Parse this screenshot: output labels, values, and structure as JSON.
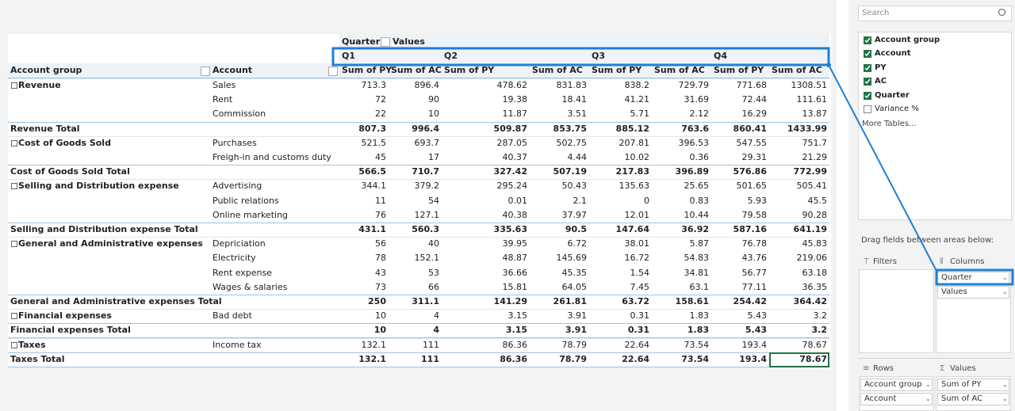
{
  "table": {
    "header": {
      "quarter_label": "Quarter",
      "values_label": "Values",
      "account_group": "Account group",
      "account": "Account",
      "quarters": [
        "Q1",
        "Q2",
        "Q3",
        "Q4"
      ],
      "measures": [
        "Sum of PY",
        "Sum of AC",
        "Sum of PY",
        "Sum of AC",
        "Sum of PY",
        "Sum of AC",
        "Sum of PY",
        "Sum of AC"
      ]
    },
    "rows": [
      {
        "group": "Revenue",
        "account": "Sales",
        "values": [
          713.3,
          896.4,
          478.62,
          831.83,
          838.2,
          729.79,
          771.68,
          1308.51
        ]
      },
      {
        "account": "Rent",
        "values": [
          72,
          90,
          19.38,
          18.41,
          41.21,
          31.69,
          72.44,
          111.61
        ]
      },
      {
        "account": "Commission",
        "values": [
          22,
          10,
          11.87,
          3.51,
          5.71,
          2.12,
          16.29,
          13.87
        ]
      },
      {
        "group": "Revenue Total",
        "values": [
          807.3,
          996.4,
          509.87,
          853.75,
          885.12,
          763.6,
          860.41,
          1433.99
        ]
      },
      {
        "group": "Cost of Goods Sold",
        "account": "Purchases",
        "values": [
          521.5,
          693.7,
          287.05,
          502.75,
          207.81,
          396.53,
          547.55,
          751.7
        ]
      },
      {
        "account": "Freigh-in and customs duty",
        "values": [
          45,
          17,
          40.37,
          4.44,
          10.02,
          0.36,
          29.31,
          21.29
        ]
      },
      {
        "group": "Cost of Goods Sold Total",
        "values": [
          566.5,
          710.7,
          327.42,
          507.19,
          217.83,
          396.89,
          576.86,
          772.99
        ]
      },
      {
        "group": "Selling and Distribution expense",
        "account": "Advertising",
        "values": [
          344.1,
          379.2,
          295.24,
          50.43,
          135.63,
          25.65,
          501.65,
          505.41
        ]
      },
      {
        "account": "Public relations",
        "values": [
          11,
          54,
          0.01,
          2.1,
          0,
          0.83,
          5.93,
          45.5
        ]
      },
      {
        "account": "Online marketing",
        "values": [
          76,
          127.1,
          40.38,
          37.97,
          12.01,
          10.44,
          79.58,
          90.28
        ]
      },
      {
        "group": "Selling and Distribution expense Total",
        "values": [
          431.1,
          560.3,
          335.63,
          90.5,
          147.64,
          36.92,
          587.16,
          641.19
        ]
      },
      {
        "group": "General and Administrative expenses",
        "account": "Depriciation",
        "values": [
          56,
          40,
          39.95,
          6.72,
          38.01,
          5.87,
          76.78,
          45.83
        ]
      },
      {
        "account": "Electricity",
        "values": [
          78,
          152.1,
          48.87,
          145.69,
          16.72,
          54.83,
          43.76,
          219.06
        ]
      },
      {
        "account": "Rent expense",
        "values": [
          43,
          53,
          36.66,
          45.35,
          1.54,
          34.81,
          56.77,
          63.18
        ]
      },
      {
        "account": "Wages & salaries",
        "values": [
          73,
          66,
          15.81,
          64.05,
          7.45,
          63.1,
          77.11,
          36.35
        ]
      },
      {
        "group": "General and Administrative expenses Total",
        "values": [
          250,
          311.1,
          141.29,
          261.81,
          63.72,
          158.61,
          254.42,
          364.42
        ]
      },
      {
        "group": "Financial expenses",
        "account": "Bad debt",
        "values": [
          10,
          4,
          3.15,
          3.91,
          0.31,
          1.83,
          5.43,
          3.2
        ]
      },
      {
        "group": "Financial expenses Total",
        "values": [
          10,
          4,
          3.15,
          3.91,
          0.31,
          1.83,
          5.43,
          3.2
        ]
      },
      {
        "group": "Taxes",
        "account": "Income tax",
        "values": [
          132.1,
          111,
          86.36,
          78.79,
          22.64,
          73.54,
          193.4,
          78.67
        ]
      },
      {
        "group": "Taxes Total",
        "values": [
          132.1,
          111,
          86.36,
          78.79,
          22.64,
          73.54,
          193.4,
          78.67
        ]
      }
    ]
  },
  "field_list": {
    "search": "Search",
    "fields": [
      {
        "label": "Account group",
        "checked": true
      },
      {
        "label": "Account",
        "checked": true
      },
      {
        "label": "PY",
        "checked": true
      },
      {
        "label": "AC",
        "checked": true
      },
      {
        "label": "Quarter",
        "checked": true
      },
      {
        "label": "Variance %",
        "checked": false
      }
    ],
    "more_tables": "More Tables...",
    "drag_hint": "Drag fields between areas below:",
    "areas": {
      "filters": {
        "label": "Filters",
        "items": []
      },
      "columns": {
        "label": "Columns",
        "items": [
          "Quarter",
          "Values"
        ]
      },
      "rows": {
        "label": "Rows",
        "items": [
          "Account group",
          "Account"
        ]
      },
      "values": {
        "label": "Values",
        "items": [
          "Sum of PY",
          "Sum of AC"
        ]
      }
    }
  }
}
